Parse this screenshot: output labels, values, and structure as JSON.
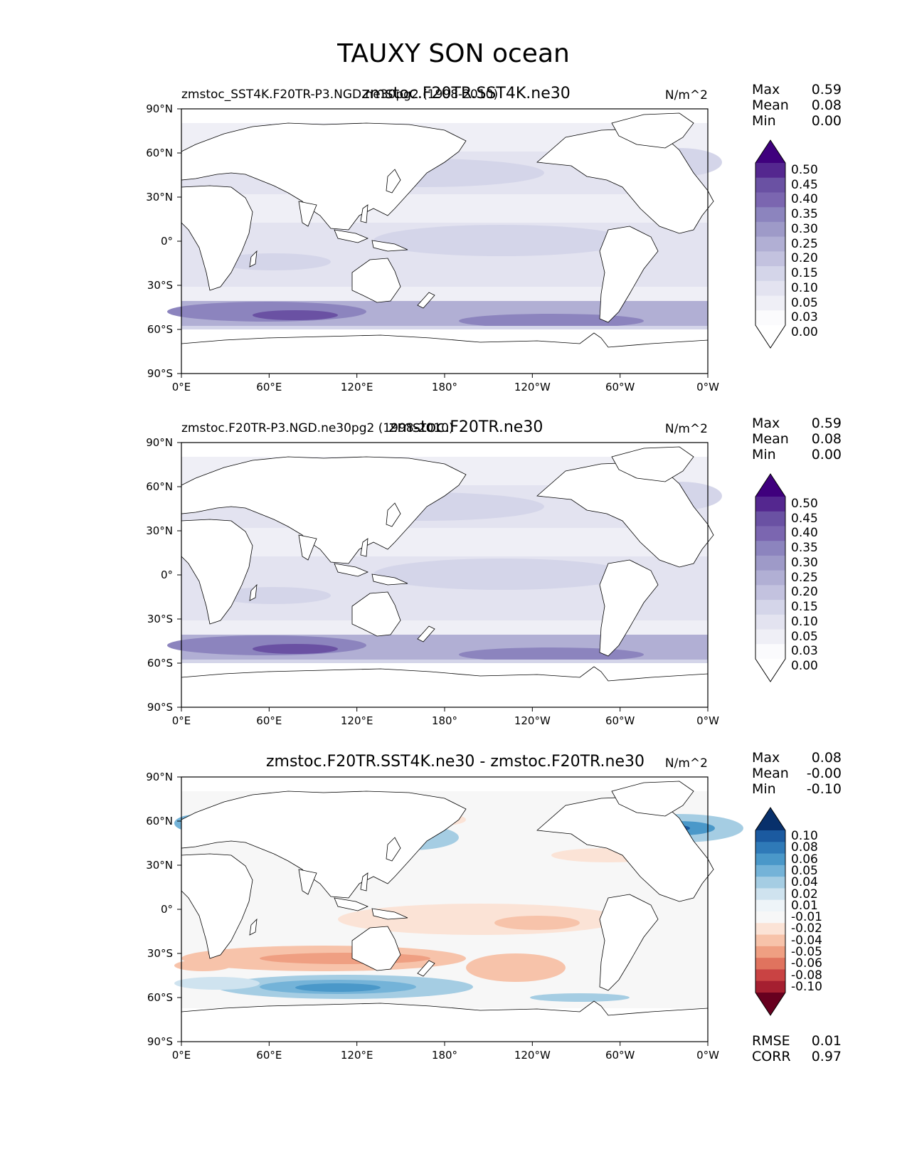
{
  "figure_title": "TAUXY SON ocean",
  "lat_ticks": [
    "90°N",
    "60°N",
    "30°N",
    "0°",
    "30°S",
    "60°S",
    "90°S"
  ],
  "lon_ticks": [
    "0°E",
    "60°E",
    "120°E",
    "180°",
    "120°W",
    "60°W",
    "0°W"
  ],
  "panels": [
    {
      "left_title": "zmstoc_SST4K.F20TR-P3.NGD.ne30pg2 (1998-2010)",
      "center_title": "zmstoc.F20TR.SST4K.ne30",
      "units": "N/m^2",
      "stats": {
        "max_label": "Max",
        "max": "0.59",
        "mean_label": "Mean",
        "mean": "0.08",
        "min_label": "Min",
        "min": "0.00"
      },
      "colorbar_labels": [
        "0.50",
        "0.45",
        "0.40",
        "0.35",
        "0.30",
        "0.25",
        "0.20",
        "0.15",
        "0.10",
        "0.05",
        "0.03",
        "0.00"
      ],
      "colorbar_colors": [
        "#3f007d",
        "#54278f",
        "#6a51a3",
        "#7b66b0",
        "#8c84be",
        "#9e9ac8",
        "#b1afd4",
        "#c3c2df",
        "#d4d5e9",
        "#e3e3f0",
        "#efeff6",
        "#fbfbfd",
        "#ffffff"
      ]
    },
    {
      "left_title": "zmstoc.F20TR-P3.NGD.ne30pg2 (1998-2010)",
      "center_title": "zmstoc.F20TR.ne30",
      "units": "N/m^2",
      "stats": {
        "max_label": "Max",
        "max": "0.59",
        "mean_label": "Mean",
        "mean": "0.08",
        "min_label": "Min",
        "min": "0.00"
      },
      "colorbar_labels": [
        "0.50",
        "0.45",
        "0.40",
        "0.35",
        "0.30",
        "0.25",
        "0.20",
        "0.15",
        "0.10",
        "0.05",
        "0.03",
        "0.00"
      ],
      "colorbar_colors": [
        "#3f007d",
        "#54278f",
        "#6a51a3",
        "#7b66b0",
        "#8c84be",
        "#9e9ac8",
        "#b1afd4",
        "#c3c2df",
        "#d4d5e9",
        "#e3e3f0",
        "#efeff6",
        "#fbfbfd",
        "#ffffff"
      ]
    },
    {
      "left_title": "",
      "center_title": "zmstoc.F20TR.SST4K.ne30 - zmstoc.F20TR.ne30",
      "units": "N/m^2",
      "stats": {
        "max_label": "Max",
        "max": "0.08",
        "mean_label": "Mean",
        "mean": "-0.00",
        "min_label": "Min",
        "min": "-0.10"
      },
      "colorbar_labels": [
        "0.10",
        "0.08",
        "0.06",
        "0.05",
        "0.04",
        "0.02",
        "0.01",
        "-0.01",
        "-0.02",
        "-0.04",
        "-0.05",
        "-0.06",
        "-0.08",
        "-0.10"
      ],
      "colorbar_colors": [
        "#08306b",
        "#1b5aa0",
        "#2f7ab8",
        "#4a98c9",
        "#74b3d8",
        "#a5cde3",
        "#cfe3ef",
        "#eef4f8",
        "#f7f7f7",
        "#fbe3d6",
        "#f7c3aa",
        "#ef9f82",
        "#e0735e",
        "#c94343",
        "#a51f30",
        "#67001f"
      ],
      "rmse_label": "RMSE",
      "rmse": "0.01",
      "corr_label": "CORR",
      "corr": "0.97"
    }
  ]
}
